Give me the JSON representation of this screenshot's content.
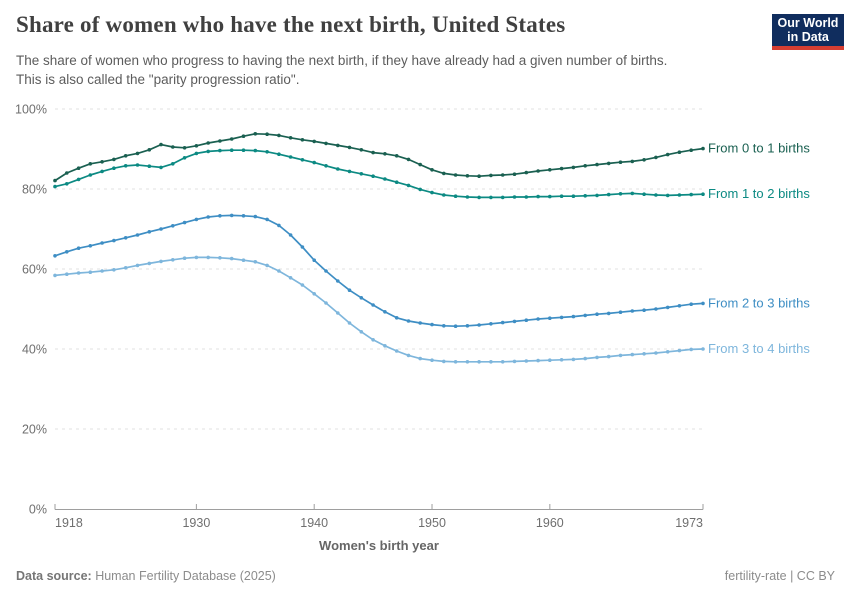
{
  "header": {
    "title": "Share of women who have the next birth, United States",
    "subtitle_line1": "The share of women who progress to having the next birth, if they have already had a given number of births.",
    "subtitle_line2": "This is also called the \"parity progression ratio\".",
    "logo": {
      "line1": "Our World",
      "line2": "in Data",
      "bg_color": "#102d5e",
      "stripe_color": "#d63e32"
    }
  },
  "footer": {
    "datasource_label": "Data source:",
    "datasource_value": " Human Fertility Database (2025)",
    "note_right": "fertility-rate | CC BY"
  },
  "chart_data": {
    "type": "line",
    "x_axis_title": "Women's birth year",
    "x_ticks": [
      1918,
      1930,
      1940,
      1950,
      1960,
      1973
    ],
    "y_ticks": [
      0,
      20,
      40,
      60,
      80,
      100
    ],
    "y_tick_suffix": "%",
    "xlim": [
      1918,
      1973
    ],
    "ylim": [
      0,
      100
    ],
    "grid": "dashed-horizontal",
    "legend_position": "right-of-line-end",
    "colors": {
      "gridline": "#e2e2e2",
      "axis": "#9e9e9e",
      "tick_label": "#6f6f6f",
      "axis_title": "#666666"
    },
    "x": [
      1918,
      1919,
      1920,
      1921,
      1922,
      1923,
      1924,
      1925,
      1926,
      1927,
      1928,
      1929,
      1930,
      1931,
      1932,
      1933,
      1934,
      1935,
      1936,
      1937,
      1938,
      1939,
      1940,
      1941,
      1942,
      1943,
      1944,
      1945,
      1946,
      1947,
      1948,
      1949,
      1950,
      1951,
      1952,
      1953,
      1954,
      1955,
      1956,
      1957,
      1958,
      1959,
      1960,
      1961,
      1962,
      1963,
      1964,
      1965,
      1966,
      1967,
      1968,
      1969,
      1970,
      1971,
      1972,
      1973
    ],
    "series": [
      {
        "name": "From 0 to 1 births",
        "color": "#1a6051",
        "values": [
          82.1,
          84.0,
          85.2,
          86.3,
          86.8,
          87.4,
          88.3,
          88.9,
          89.8,
          91.1,
          90.5,
          90.3,
          90.8,
          91.5,
          92.0,
          92.5,
          93.2,
          93.8,
          93.7,
          93.4,
          92.8,
          92.3,
          91.9,
          91.4,
          90.9,
          90.4,
          89.8,
          89.1,
          88.8,
          88.3,
          87.4,
          86.1,
          84.8,
          83.9,
          83.5,
          83.3,
          83.2,
          83.4,
          83.5,
          83.7,
          84.1,
          84.5,
          84.8,
          85.1,
          85.4,
          85.8,
          86.1,
          86.4,
          86.7,
          86.9,
          87.3,
          87.9,
          88.6,
          89.2,
          89.7,
          90.1
        ]
      },
      {
        "name": "From 1 to 2 births",
        "color": "#0c8a83",
        "values": [
          80.6,
          81.3,
          82.4,
          83.5,
          84.4,
          85.2,
          85.8,
          86.0,
          85.7,
          85.4,
          86.3,
          87.8,
          88.9,
          89.4,
          89.6,
          89.7,
          89.7,
          89.6,
          89.3,
          88.7,
          88.0,
          87.3,
          86.6,
          85.8,
          85.0,
          84.4,
          83.8,
          83.2,
          82.5,
          81.7,
          80.9,
          79.9,
          79.1,
          78.5,
          78.2,
          78.0,
          77.9,
          77.9,
          77.9,
          78.0,
          78.0,
          78.1,
          78.1,
          78.2,
          78.2,
          78.3,
          78.4,
          78.6,
          78.8,
          78.9,
          78.7,
          78.5,
          78.4,
          78.5,
          78.6,
          78.7
        ]
      },
      {
        "name": "From 2 to 3 births",
        "color": "#3e8ec4",
        "values": [
          63.3,
          64.3,
          65.2,
          65.8,
          66.5,
          67.1,
          67.8,
          68.5,
          69.3,
          70.0,
          70.8,
          71.6,
          72.4,
          73.0,
          73.3,
          73.4,
          73.3,
          73.1,
          72.4,
          70.9,
          68.5,
          65.5,
          62.2,
          59.5,
          57.0,
          54.7,
          52.8,
          51.0,
          49.3,
          47.8,
          47.0,
          46.5,
          46.1,
          45.8,
          45.7,
          45.8,
          46.0,
          46.3,
          46.6,
          46.9,
          47.2,
          47.5,
          47.7,
          47.9,
          48.1,
          48.4,
          48.7,
          48.9,
          49.2,
          49.5,
          49.7,
          50.0,
          50.4,
          50.8,
          51.2,
          51.4
        ]
      },
      {
        "name": "From 3 to 4 births",
        "color": "#7eb6dc",
        "values": [
          58.4,
          58.7,
          59.0,
          59.2,
          59.5,
          59.8,
          60.3,
          60.9,
          61.4,
          61.9,
          62.3,
          62.7,
          62.9,
          62.9,
          62.8,
          62.6,
          62.2,
          61.8,
          60.9,
          59.5,
          57.8,
          56.0,
          53.8,
          51.5,
          49.0,
          46.5,
          44.3,
          42.3,
          40.8,
          39.5,
          38.4,
          37.6,
          37.2,
          36.9,
          36.8,
          36.8,
          36.8,
          36.8,
          36.8,
          36.9,
          37.0,
          37.1,
          37.2,
          37.3,
          37.4,
          37.6,
          37.9,
          38.1,
          38.4,
          38.6,
          38.8,
          39.0,
          39.3,
          39.6,
          39.9,
          40.0
        ]
      }
    ]
  }
}
